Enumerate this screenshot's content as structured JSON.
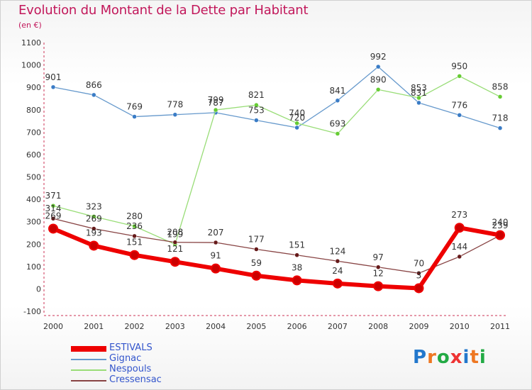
{
  "header": {
    "title": "Evolution du Montant de la Dette par Habitant",
    "unit": "(en €)"
  },
  "colors": {
    "title": "#c2185b",
    "axis_text": "#333333",
    "grid": "#dddddd"
  },
  "logo": {
    "letters": [
      "P",
      "r",
      "o",
      "x",
      "i",
      "t",
      "i"
    ]
  },
  "chart_data": {
    "type": "line",
    "title": "Evolution du Montant de la Dette par Habitant",
    "subtitle": "(en €)",
    "xlabel": "",
    "ylabel": "",
    "x": [
      "2000",
      "2001",
      "2002",
      "2003",
      "2004",
      "2005",
      "2006",
      "2007",
      "2008",
      "2009",
      "2010",
      "2011"
    ],
    "ylim": [
      -100,
      1100
    ],
    "yticks": [
      -100,
      0,
      100,
      200,
      300,
      400,
      500,
      600,
      700,
      800,
      900,
      1000,
      1100
    ],
    "grid": false,
    "legend_position": "bottom-left",
    "series": [
      {
        "name": "ESTIVALS",
        "color": "#ee0000",
        "point_color": "#cc0000",
        "width": 6,
        "values": [
          269,
          193,
          151,
          121,
          91,
          59,
          38,
          24,
          12,
          3,
          273,
          240
        ],
        "labels": [
          "269",
          "193",
          "151",
          "121",
          "91",
          "59",
          "38",
          "24",
          "12",
          "3",
          "273",
          "240"
        ]
      },
      {
        "name": "Gignac",
        "color": "#6699cc",
        "point_color": "#3a7cc6",
        "width": 1.3,
        "values": [
          901,
          866,
          769,
          778,
          787,
          753,
          720,
          841,
          992,
          831,
          776,
          718
        ],
        "labels": [
          "901",
          "866",
          "769",
          "778",
          "787",
          "753",
          "720",
          "841",
          "992",
          "831",
          "776",
          "718"
        ]
      },
      {
        "name": "Nespouls",
        "color": "#99dd77",
        "point_color": "#66cc33",
        "width": 1.3,
        "values": [
          371,
          323,
          280,
          199,
          799,
          821,
          740,
          693,
          890,
          853,
          950,
          858
        ],
        "labels": [
          "371",
          "323",
          "280",
          "199",
          "799",
          "821",
          "740",
          "693",
          "890",
          "853",
          "950",
          "858"
        ]
      },
      {
        "name": "Cressensac",
        "color": "#884444",
        "point_color": "#661a1a",
        "width": 1.3,
        "values": [
          314,
          269,
          236,
          208,
          207,
          177,
          151,
          124,
          97,
          70,
          144,
          239
        ],
        "labels": [
          "314",
          "269",
          "236",
          "208",
          "207",
          "177",
          "151",
          "124",
          "97",
          "70",
          "144",
          "239"
        ]
      }
    ]
  }
}
